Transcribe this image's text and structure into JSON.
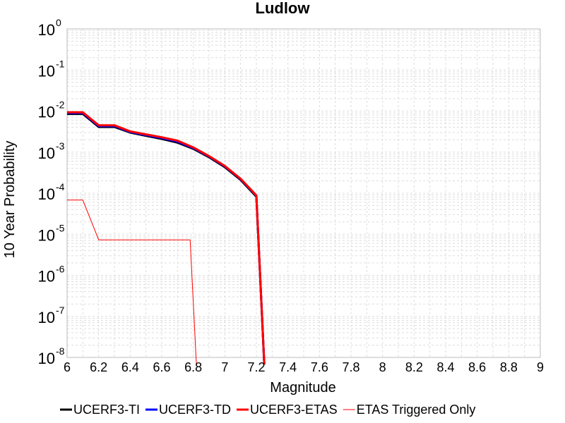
{
  "chart_data": {
    "type": "line",
    "title": "Ludlow",
    "xlabel": "Magnitude",
    "ylabel": "10 Year Probability",
    "xlim": [
      6,
      9
    ],
    "ylim": [
      1e-08,
      1
    ],
    "y_scale": "log",
    "grid": true,
    "legend_position": "bottom",
    "x_ticks": [
      "6",
      "6.2",
      "6.4",
      "6.6",
      "6.8",
      "7",
      "7.2",
      "7.4",
      "7.6",
      "7.8",
      "8",
      "8.2",
      "8.4",
      "8.6",
      "8.8",
      "9"
    ],
    "y_ticks": [
      {
        "base": "10",
        "exp": "0"
      },
      {
        "base": "10",
        "exp": "-1"
      },
      {
        "base": "10",
        "exp": "-2"
      },
      {
        "base": "10",
        "exp": "-3"
      },
      {
        "base": "10",
        "exp": "-4"
      },
      {
        "base": "10",
        "exp": "-5"
      },
      {
        "base": "10",
        "exp": "-6"
      },
      {
        "base": "10",
        "exp": "-7"
      },
      {
        "base": "10",
        "exp": "-8"
      }
    ],
    "series": [
      {
        "name": "UCERF3-TI",
        "color": "#000000",
        "width": 3,
        "x": [
          6.0,
          6.1,
          6.2,
          6.3,
          6.4,
          6.5,
          6.6,
          6.7,
          6.8,
          6.9,
          7.0,
          7.1,
          7.2,
          7.25
        ],
        "y": [
          0.0085,
          0.0085,
          0.0041,
          0.0041,
          0.003,
          0.0025,
          0.0021,
          0.0017,
          0.0012,
          0.00075,
          0.00043,
          0.00021,
          8.2e-05,
          1e-09
        ]
      },
      {
        "name": "UCERF3-TD",
        "color": "#0000ff",
        "width": 3,
        "x": [
          6.0,
          6.1,
          6.2,
          6.3,
          6.4,
          6.5,
          6.6,
          6.7,
          6.8,
          6.9,
          7.0,
          7.1,
          7.2,
          7.25
        ],
        "y": [
          0.009,
          0.009,
          0.0043,
          0.0043,
          0.0031,
          0.0026,
          0.0022,
          0.0018,
          0.00125,
          0.00078,
          0.00045,
          0.00022,
          8.6e-05,
          1e-09
        ]
      },
      {
        "name": "UCERF3-ETAS",
        "color": "#ff0000",
        "width": 3,
        "x": [
          6.0,
          6.1,
          6.2,
          6.3,
          6.4,
          6.5,
          6.6,
          6.7,
          6.8,
          6.9,
          7.0,
          7.1,
          7.2,
          7.25
        ],
        "y": [
          0.0093,
          0.0093,
          0.0045,
          0.0045,
          0.0032,
          0.0027,
          0.0023,
          0.0019,
          0.0013,
          0.0008,
          0.00046,
          0.000225,
          8.8e-05,
          1e-09
        ]
      },
      {
        "name": "ETAS Triggered Only",
        "color": "#ff0000",
        "width": 1,
        "x": [
          6.0,
          6.1,
          6.2,
          6.3,
          6.4,
          6.5,
          6.6,
          6.7,
          6.78,
          6.82
        ],
        "y": [
          6.8e-05,
          6.8e-05,
          7.3e-06,
          7.3e-06,
          7.3e-06,
          7.3e-06,
          7.3e-06,
          7.3e-06,
          7.3e-06,
          1e-09
        ]
      }
    ]
  }
}
